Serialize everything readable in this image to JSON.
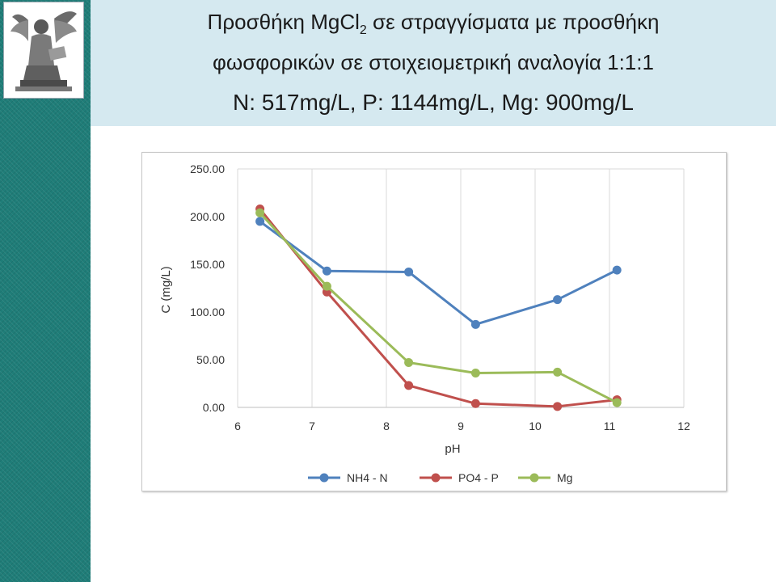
{
  "header": {
    "title_line1_prefix": "Προσθήκη MgCl",
    "title_line1_sub": "2",
    "title_line1_suffix": " σε στραγγίσματα με προσθήκη",
    "title_line2": "φωσφορικών σε στοιχειομετρική αναλογία 1:1:1",
    "title_line3": "N: 517mg/L, P: 1144mg/L, Mg: 900mg/L"
  },
  "logo": {
    "icon": "university-emblem-icon"
  },
  "colors": {
    "sidebar": "#1f7d78",
    "title_band": "#d5e9f0"
  },
  "chart_data": {
    "type": "line",
    "xlabel": "pH",
    "ylabel": "C (mg/L)",
    "xlim": [
      6,
      12
    ],
    "ylim": [
      0,
      250
    ],
    "x_ticks": [
      "6",
      "7",
      "8",
      "9",
      "10",
      "11",
      "12"
    ],
    "y_ticks": [
      "0.00",
      "50.00",
      "100.00",
      "150.00",
      "200.00",
      "250.00"
    ],
    "grid": "vertical",
    "legend_position": "bottom",
    "series": [
      {
        "name": "NH4 - N",
        "color": "#4f81bd",
        "points": [
          [
            6.3,
            195
          ],
          [
            7.2,
            143
          ],
          [
            8.3,
            142
          ],
          [
            9.2,
            87
          ],
          [
            10.3,
            113
          ],
          [
            11.1,
            144
          ]
        ]
      },
      {
        "name": "PO4 - P",
        "color": "#c0504d",
        "points": [
          [
            6.3,
            208
          ],
          [
            7.2,
            121
          ],
          [
            8.3,
            23
          ],
          [
            9.2,
            4
          ],
          [
            10.3,
            1
          ],
          [
            11.1,
            8
          ]
        ]
      },
      {
        "name": "Mg",
        "color": "#9bbb59",
        "points": [
          [
            6.3,
            204
          ],
          [
            7.2,
            127
          ],
          [
            8.3,
            47
          ],
          [
            9.2,
            36
          ],
          [
            10.3,
            37
          ],
          [
            11.1,
            5
          ]
        ]
      }
    ]
  }
}
